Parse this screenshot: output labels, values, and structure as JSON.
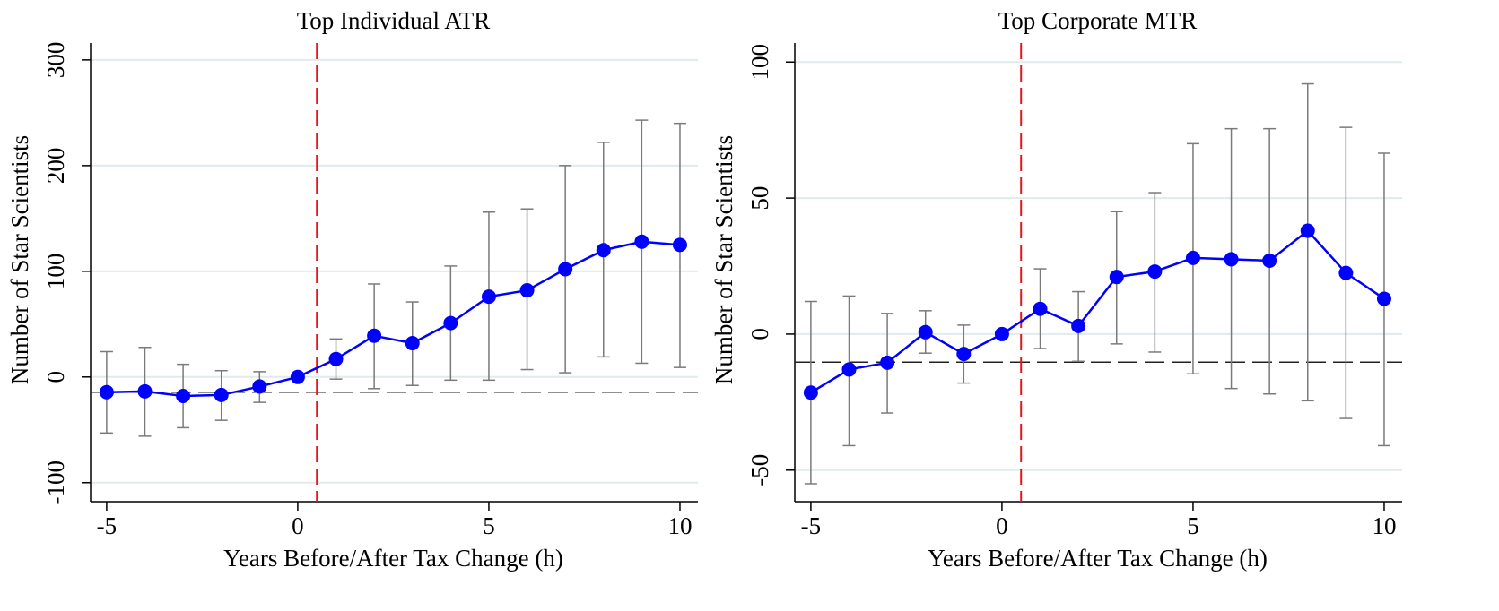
{
  "chart_data": [
    {
      "type": "line",
      "title": "Top Individual ATR",
      "xlabel": "Years Before/After Tax Change (h)",
      "ylabel": "Number of Star Scientists",
      "x": [
        -5,
        -4,
        -3,
        -2,
        -1,
        0,
        1,
        2,
        3,
        4,
        5,
        6,
        7,
        8,
        9,
        10
      ],
      "series": [
        {
          "color": "#0000ff",
          "values": [
            -14.4,
            -13.6,
            -18,
            -17,
            -9,
            0,
            17,
            39,
            32,
            51,
            76,
            82,
            102,
            120,
            128,
            125
          ],
          "ci_low": [
            -53,
            -56,
            -48,
            -41,
            -24,
            null,
            -2,
            -11,
            -8,
            -3,
            -3,
            7,
            4,
            19,
            13,
            9
          ],
          "ci_high": [
            24,
            28,
            12,
            6,
            5,
            null,
            36,
            88,
            71,
            105,
            156,
            159,
            200,
            222,
            243,
            240
          ]
        }
      ],
      "hline": -14.4,
      "vline": 0.5,
      "xlim": [
        -5.42,
        10.47
      ],
      "xticks": [
        -5,
        0,
        5,
        10
      ],
      "ylim": [
        -118,
        316
      ],
      "yticks": [
        -100,
        0,
        100,
        200,
        300
      ],
      "grid": true
    },
    {
      "type": "line",
      "title": "Top Corporate MTR",
      "xlabel": "Years Before/After Tax Change (h)",
      "ylabel": "Number of Star Scientists",
      "x": [
        -5,
        -4,
        -3,
        -2,
        -1,
        0,
        1,
        2,
        3,
        4,
        5,
        6,
        7,
        8,
        9,
        10
      ],
      "series": [
        {
          "color": "#0000ff",
          "values": [
            -21.5,
            -13,
            -10.5,
            0.7,
            -7.3,
            0,
            9.3,
            3,
            21,
            23,
            28,
            27.5,
            27,
            38,
            22.5,
            13
          ],
          "ci_low": [
            -55,
            -41,
            -29,
            -7,
            -18,
            null,
            -5.3,
            -10,
            -3.6,
            -6.6,
            -14.6,
            -20,
            -22,
            -24.5,
            -31,
            -41
          ],
          "ci_high": [
            12,
            14,
            7.6,
            8.6,
            3.3,
            null,
            24,
            15.6,
            45,
            52,
            70,
            75.5,
            75.5,
            92,
            76,
            66.5
          ]
        }
      ],
      "hline": -10.3,
      "vline": 0.5,
      "xlim": [
        -5.42,
        10.47
      ],
      "xticks": [
        -5,
        0,
        5,
        10
      ],
      "ylim": [
        -61.6,
        107
      ],
      "yticks": [
        -50,
        0,
        50,
        100
      ],
      "grid": true
    }
  ]
}
